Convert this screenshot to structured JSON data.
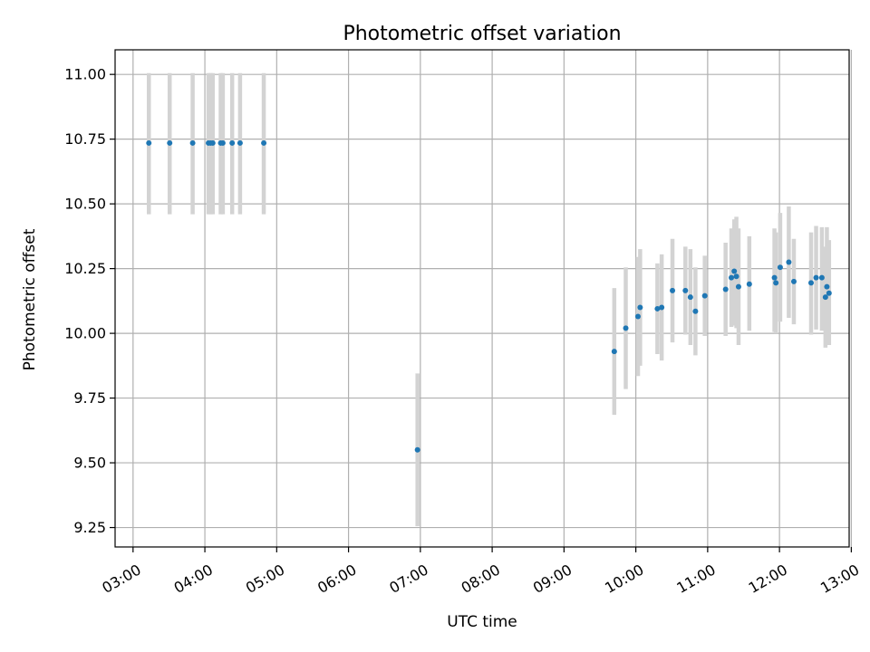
{
  "chart_data": {
    "type": "scatter",
    "title": "Photometric offset variation",
    "xlabel": "UTC time",
    "ylabel": "Photometric offset",
    "x_unit": "hours UTC",
    "xlim": [
      2.75,
      12.97
    ],
    "ylim": [
      9.175,
      11.095
    ],
    "x_ticks": [
      {
        "value": 3,
        "label": "03:00"
      },
      {
        "value": 4,
        "label": "04:00"
      },
      {
        "value": 5,
        "label": "05:00"
      },
      {
        "value": 6,
        "label": "06:00"
      },
      {
        "value": 7,
        "label": "07:00"
      },
      {
        "value": 8,
        "label": "08:00"
      },
      {
        "value": 9,
        "label": "09:00"
      },
      {
        "value": 10,
        "label": "10:00"
      },
      {
        "value": 11,
        "label": "11:00"
      },
      {
        "value": 12,
        "label": "12:00"
      },
      {
        "value": 13,
        "label": "13:00"
      }
    ],
    "y_ticks": [
      {
        "value": 9.25,
        "label": "9.25"
      },
      {
        "value": 9.5,
        "label": "9.50"
      },
      {
        "value": 9.75,
        "label": "9.75"
      },
      {
        "value": 10.0,
        "label": "10.00"
      },
      {
        "value": 10.25,
        "label": "10.25"
      },
      {
        "value": 10.5,
        "label": "10.50"
      },
      {
        "value": 10.75,
        "label": "10.75"
      },
      {
        "value": 11.0,
        "label": "11.00"
      }
    ],
    "grid": true,
    "point_color": "#1f77b4",
    "errorbar_color": "#d3d3d3",
    "series": [
      {
        "points": [
          {
            "x": 3.22,
            "y": 10.735,
            "ylo": 10.46,
            "yhi": 11.005
          },
          {
            "x": 3.51,
            "y": 10.735,
            "ylo": 10.46,
            "yhi": 11.005
          },
          {
            "x": 3.83,
            "y": 10.735,
            "ylo": 10.46,
            "yhi": 11.005
          },
          {
            "x": 4.05,
            "y": 10.735,
            "ylo": 10.46,
            "yhi": 11.005
          },
          {
            "x": 4.08,
            "y": 10.735,
            "ylo": 10.46,
            "yhi": 11.005
          },
          {
            "x": 4.11,
            "y": 10.735,
            "ylo": 10.46,
            "yhi": 11.005
          },
          {
            "x": 4.22,
            "y": 10.735,
            "ylo": 10.46,
            "yhi": 11.005
          },
          {
            "x": 4.25,
            "y": 10.735,
            "ylo": 10.46,
            "yhi": 11.005
          },
          {
            "x": 4.38,
            "y": 10.735,
            "ylo": 10.46,
            "yhi": 11.005
          },
          {
            "x": 4.49,
            "y": 10.735,
            "ylo": 10.46,
            "yhi": 11.005
          },
          {
            "x": 4.82,
            "y": 10.735,
            "ylo": 10.46,
            "yhi": 11.005
          },
          {
            "x": 6.96,
            "y": 9.55,
            "ylo": 9.255,
            "yhi": 9.845
          },
          {
            "x": 9.7,
            "y": 9.93,
            "ylo": 9.685,
            "yhi": 10.175
          },
          {
            "x": 9.86,
            "y": 10.02,
            "ylo": 9.785,
            "yhi": 10.255
          },
          {
            "x": 10.03,
            "y": 10.065,
            "ylo": 9.835,
            "yhi": 10.295
          },
          {
            "x": 10.06,
            "y": 10.1,
            "ylo": 9.875,
            "yhi": 10.325
          },
          {
            "x": 10.3,
            "y": 10.095,
            "ylo": 9.92,
            "yhi": 10.27
          },
          {
            "x": 10.36,
            "y": 10.1,
            "ylo": 9.895,
            "yhi": 10.305
          },
          {
            "x": 10.51,
            "y": 10.165,
            "ylo": 9.965,
            "yhi": 10.365
          },
          {
            "x": 10.69,
            "y": 10.165,
            "ylo": 9.995,
            "yhi": 10.335
          },
          {
            "x": 10.76,
            "y": 10.14,
            "ylo": 9.955,
            "yhi": 10.325
          },
          {
            "x": 10.83,
            "y": 10.085,
            "ylo": 9.915,
            "yhi": 10.255
          },
          {
            "x": 10.96,
            "y": 10.145,
            "ylo": 9.99,
            "yhi": 10.3
          },
          {
            "x": 11.25,
            "y": 10.17,
            "ylo": 9.99,
            "yhi": 10.35
          },
          {
            "x": 11.33,
            "y": 10.215,
            "ylo": 10.025,
            "yhi": 10.405
          },
          {
            "x": 11.37,
            "y": 10.24,
            "ylo": 10.03,
            "yhi": 10.44
          },
          {
            "x": 11.4,
            "y": 10.22,
            "ylo": 10.02,
            "yhi": 10.45
          },
          {
            "x": 11.43,
            "y": 10.18,
            "ylo": 9.955,
            "yhi": 10.405
          },
          {
            "x": 11.58,
            "y": 10.19,
            "ylo": 10.01,
            "yhi": 10.375
          },
          {
            "x": 11.93,
            "y": 10.215,
            "ylo": 10.005,
            "yhi": 10.405
          },
          {
            "x": 11.95,
            "y": 10.195,
            "ylo": 10.0,
            "yhi": 10.39
          },
          {
            "x": 12.01,
            "y": 10.255,
            "ylo": 10.045,
            "yhi": 10.465
          },
          {
            "x": 12.13,
            "y": 10.275,
            "ylo": 10.06,
            "yhi": 10.49
          },
          {
            "x": 12.2,
            "y": 10.2,
            "ylo": 10.035,
            "yhi": 10.365
          },
          {
            "x": 12.44,
            "y": 10.195,
            "ylo": 9.995,
            "yhi": 10.39
          },
          {
            "x": 12.51,
            "y": 10.215,
            "ylo": 10.015,
            "yhi": 10.415
          },
          {
            "x": 12.59,
            "y": 10.215,
            "ylo": 10.01,
            "yhi": 10.41
          },
          {
            "x": 12.64,
            "y": 10.14,
            "ylo": 9.945,
            "yhi": 10.335
          },
          {
            "x": 12.66,
            "y": 10.18,
            "ylo": 9.99,
            "yhi": 10.41
          },
          {
            "x": 12.69,
            "y": 10.155,
            "ylo": 9.955,
            "yhi": 10.36
          }
        ]
      }
    ]
  }
}
